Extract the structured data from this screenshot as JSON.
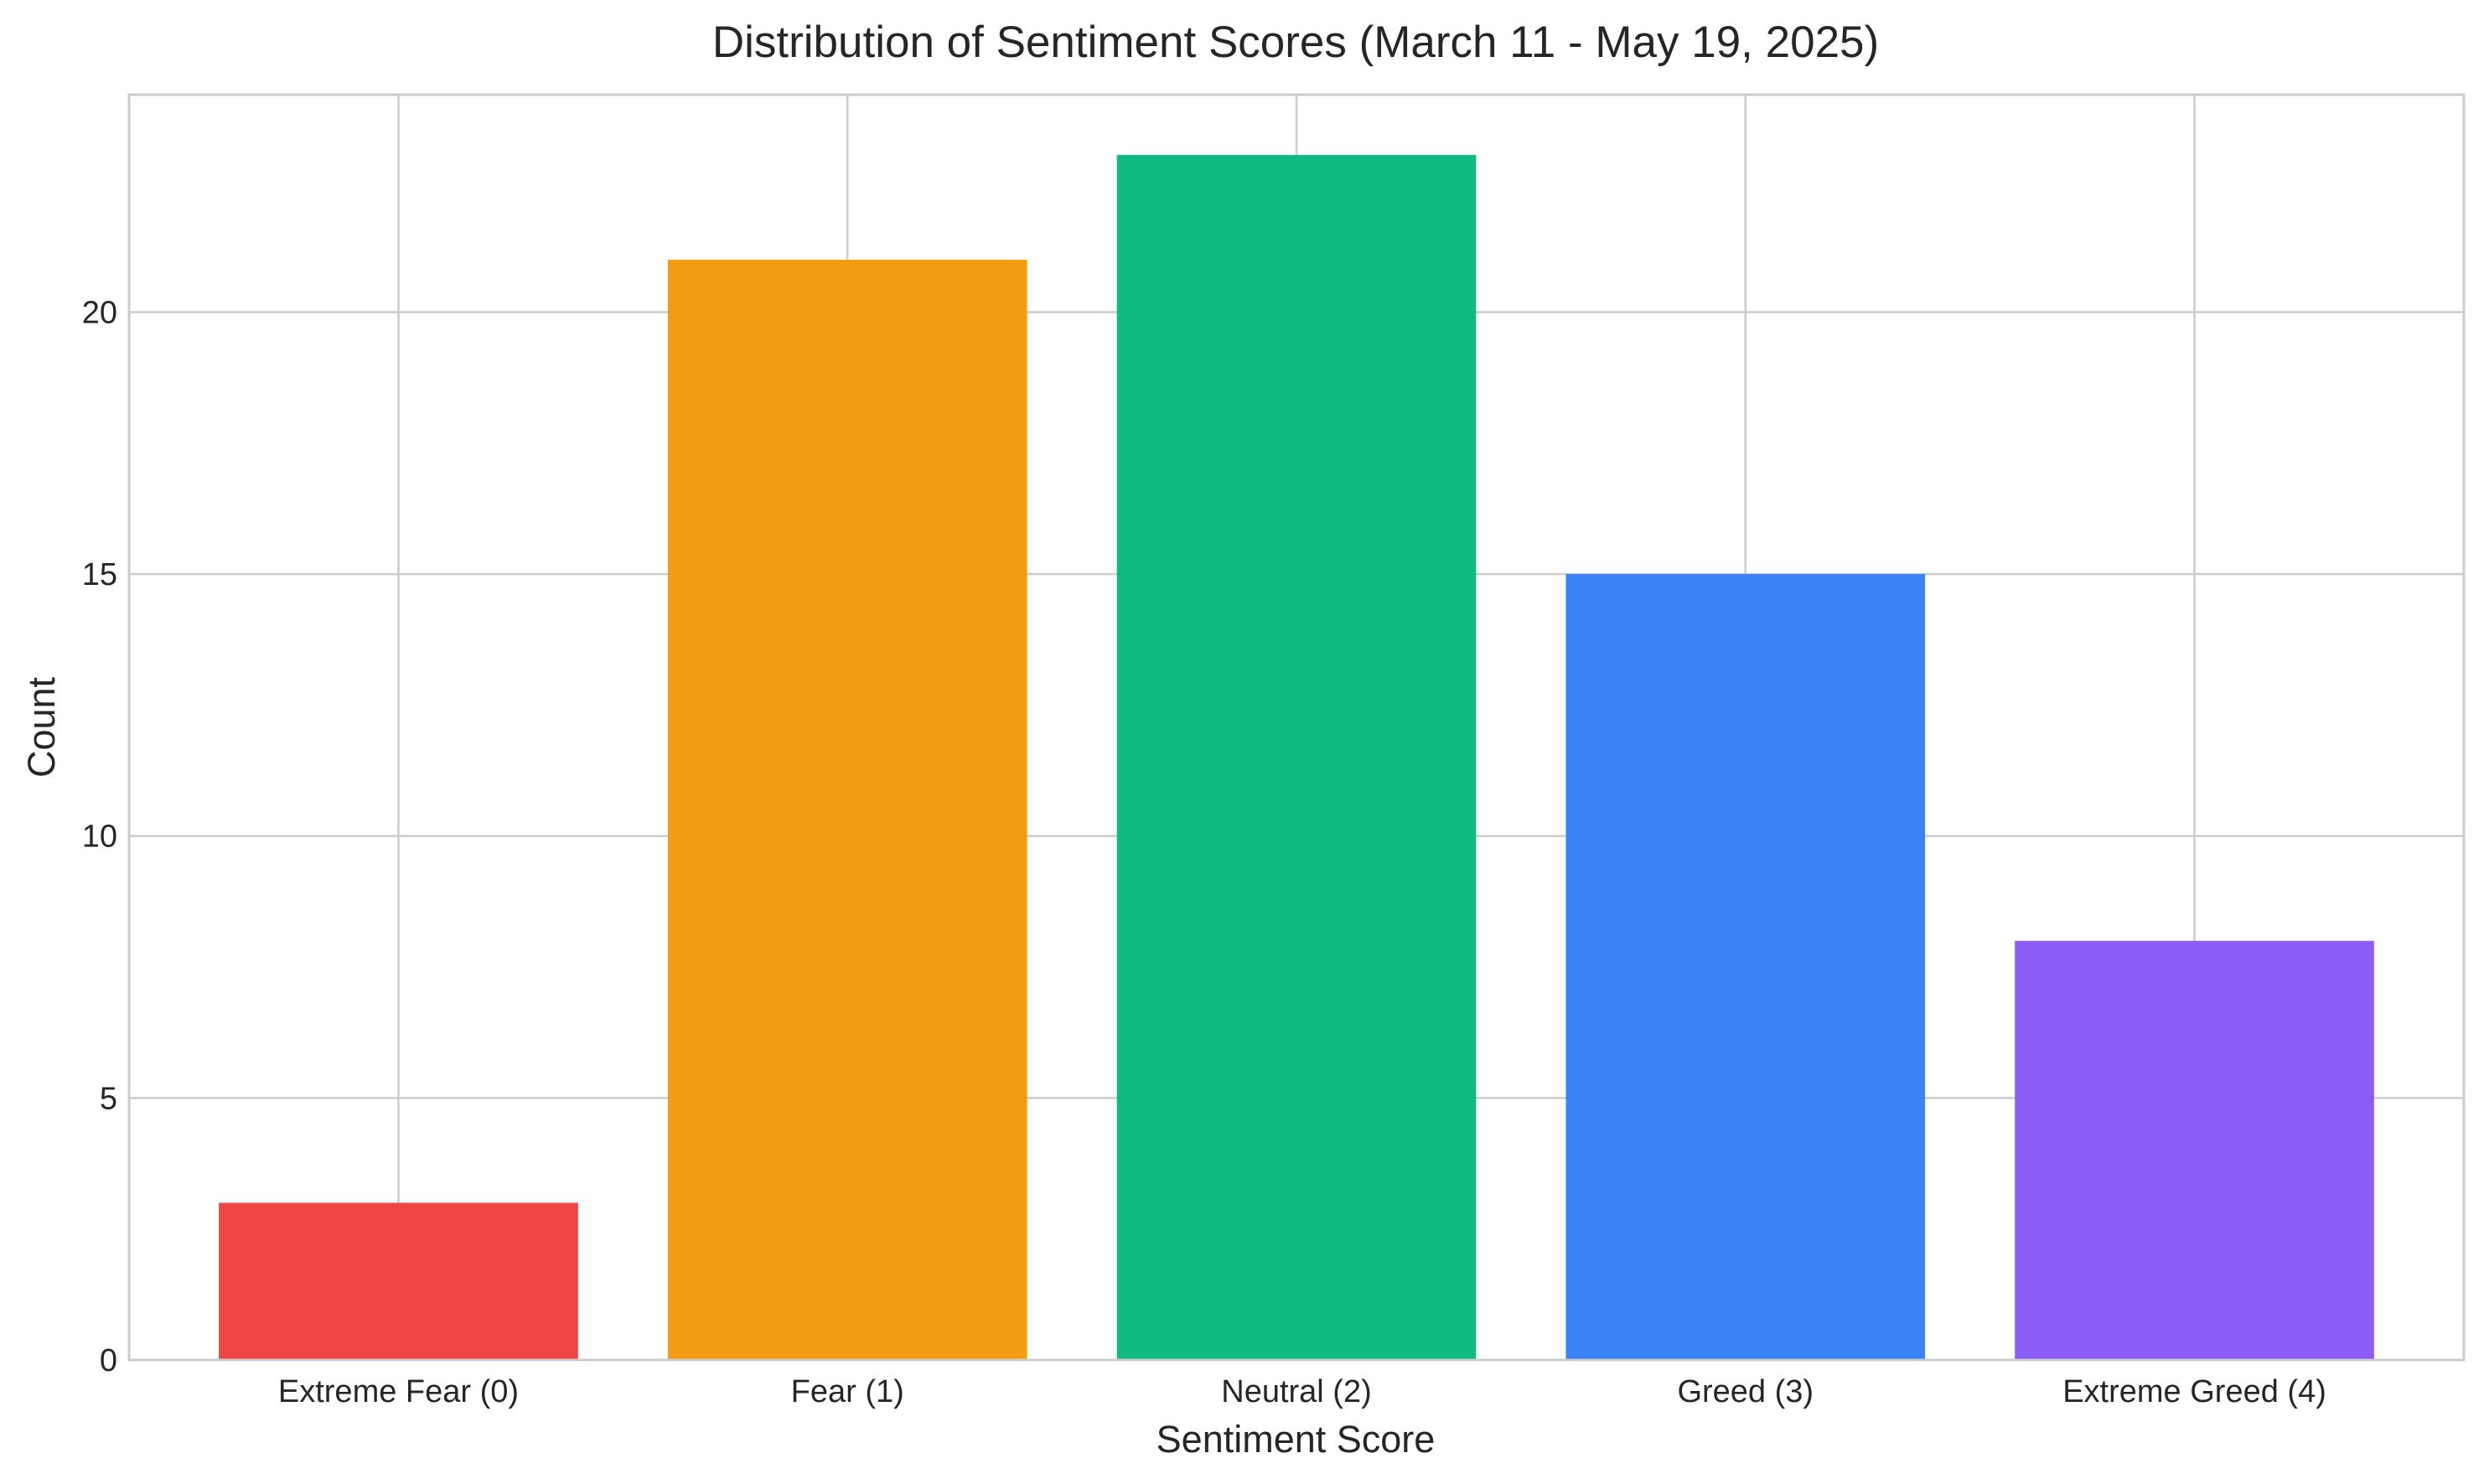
{
  "chart_data": {
    "type": "bar",
    "title": "Distribution of Sentiment Scores (March 11 - May 19, 2025)",
    "xlabel": "Sentiment Score",
    "ylabel": "Count",
    "categories": [
      "Extreme Fear (0)",
      "Fear (1)",
      "Neutral (2)",
      "Greed (3)",
      "Extreme Greed (4)"
    ],
    "values": [
      3,
      21,
      23,
      15,
      8
    ],
    "colors": [
      "#ef4444",
      "#f39c12",
      "#10b981",
      "#3b82f6",
      "#8b5cf6"
    ],
    "yticks": [
      0,
      5,
      10,
      15,
      20
    ],
    "ylim": [
      0,
      24.15
    ],
    "grid": true,
    "legend": "none"
  }
}
